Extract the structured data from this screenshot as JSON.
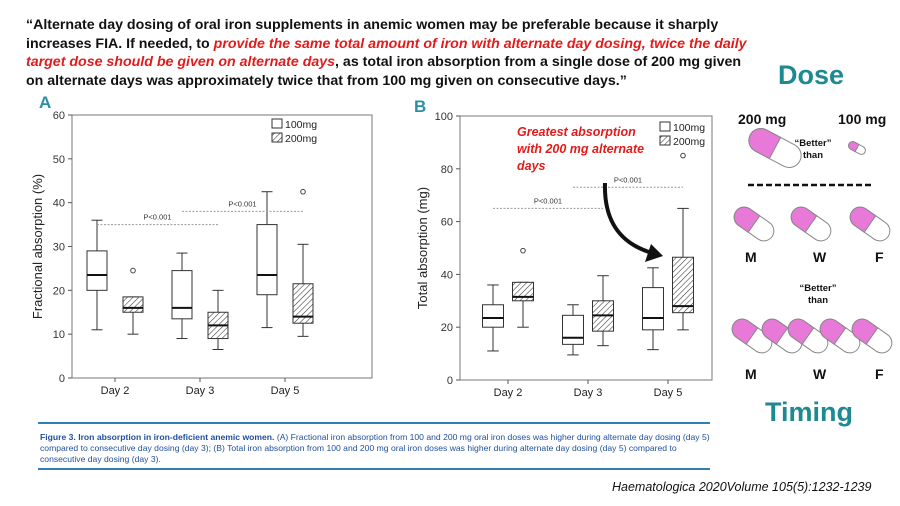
{
  "quote": {
    "part1": "“Alternate day dosing of oral iron supplements in anemic women may be preferable because it sharply increases FIA. If needed, to ",
    "red": "provide the same total amount of iron with alternate day dosing, twice the daily target dose should be given on alternate days",
    "part2": ", as total iron absorption from a single dose of 200 mg given on alternate days was approximately twice that from 100 mg given on consecutive days.”"
  },
  "right_panel": {
    "dose_title": "Dose",
    "dose_200": "200 mg",
    "dose_100": "100 mg",
    "better_1": "“Better”",
    "than_1": "than",
    "better_2": "“Better”",
    "than_2": "than",
    "days_top": [
      "M",
      "W",
      "F"
    ],
    "days_bottom": [
      "M",
      "W",
      "F"
    ],
    "timing_title": "Timing",
    "pill_color": "#e879d8"
  },
  "caption": {
    "bold": "Figure 3. Iron absorption in iron-deficient anemic women.",
    "text": " (A) Fractional iron absorption from 100 and 200 mg oral iron doses was higher during alternate day dosing (day 5) compared to consecutive day dosing (day 3); (B) Total iron absorption from 100 and 200 mg oral iron doses was higher during alternate day dosing (day 5) compared to consecutive day dosing (day 3)."
  },
  "citation": "Haematologica 2020Volume 105(5):1232-1239",
  "annotation": "Greatest absorption with 200 mg alternate days",
  "chart_data": [
    {
      "panel": "A",
      "type": "boxplot",
      "ylabel": "Fractional absorption (%)",
      "ylim": [
        0,
        60
      ],
      "yticks": [
        0,
        10,
        20,
        30,
        40,
        50,
        60
      ],
      "categories": [
        "Day 2",
        "Day 3",
        "Day 5"
      ],
      "legend": [
        "100mg",
        "200mg"
      ],
      "series": [
        {
          "name": "100mg",
          "boxes": [
            {
              "whisker_low": 11,
              "q1": 20,
              "median": 23.5,
              "q3": 29,
              "whisker_high": 36,
              "outliers": []
            },
            {
              "whisker_low": 9,
              "q1": 13.5,
              "median": 16,
              "q3": 24.5,
              "whisker_high": 28.5,
              "outliers": []
            },
            {
              "whisker_low": 11.5,
              "q1": 19,
              "median": 23.5,
              "q3": 35,
              "whisker_high": 42.5,
              "outliers": []
            }
          ]
        },
        {
          "name": "200mg",
          "boxes": [
            {
              "whisker_low": 10,
              "q1": 15,
              "median": 16,
              "q3": 18.5,
              "whisker_high": 18.5,
              "outliers": [
                24.5
              ]
            },
            {
              "whisker_low": 6.5,
              "q1": 9,
              "median": 12,
              "q3": 15,
              "whisker_high": 20,
              "outliers": []
            },
            {
              "whisker_low": 9.5,
              "q1": 12.5,
              "median": 14,
              "q3": 21.5,
              "whisker_high": 30.5,
              "outliers": [
                42.5
              ]
            }
          ]
        }
      ],
      "significance": [
        {
          "label": "P<0.001",
          "from": "Day 2",
          "to": "Day 3",
          "y": 35
        },
        {
          "label": "P<0.001",
          "from": "Day 3",
          "to": "Day 5",
          "y": 38
        }
      ]
    },
    {
      "panel": "B",
      "type": "boxplot",
      "ylabel": "Total absorption (mg)",
      "ylim": [
        0,
        100
      ],
      "yticks": [
        0,
        20,
        40,
        60,
        80,
        100
      ],
      "categories": [
        "Day 2",
        "Day 3",
        "Day 5"
      ],
      "legend": [
        "100mg",
        "200mg"
      ],
      "series": [
        {
          "name": "100mg",
          "boxes": [
            {
              "whisker_low": 11,
              "q1": 20,
              "median": 23.5,
              "q3": 28.5,
              "whisker_high": 36,
              "outliers": []
            },
            {
              "whisker_low": 9.5,
              "q1": 13.5,
              "median": 16,
              "q3": 24.5,
              "whisker_high": 28.5,
              "outliers": []
            },
            {
              "whisker_low": 11.5,
              "q1": 19,
              "median": 23.5,
              "q3": 35,
              "whisker_high": 42.5,
              "outliers": []
            }
          ]
        },
        {
          "name": "200mg",
          "boxes": [
            {
              "whisker_low": 20,
              "q1": 30,
              "median": 31.5,
              "q3": 37,
              "whisker_high": 37,
              "outliers": [
                49
              ]
            },
            {
              "whisker_low": 13,
              "q1": 18.5,
              "median": 24.5,
              "q3": 30,
              "whisker_high": 39.5,
              "outliers": []
            },
            {
              "whisker_low": 19,
              "q1": 25.5,
              "median": 28,
              "q3": 46.5,
              "whisker_high": 65,
              "outliers": [
                85
              ]
            }
          ]
        }
      ],
      "significance": [
        {
          "label": "P<0.001",
          "from": "Day 2",
          "to": "Day 3",
          "y": 65
        },
        {
          "label": "P<0.001",
          "from": "Day 3",
          "to": "Day 5",
          "y": 73
        }
      ]
    }
  ]
}
